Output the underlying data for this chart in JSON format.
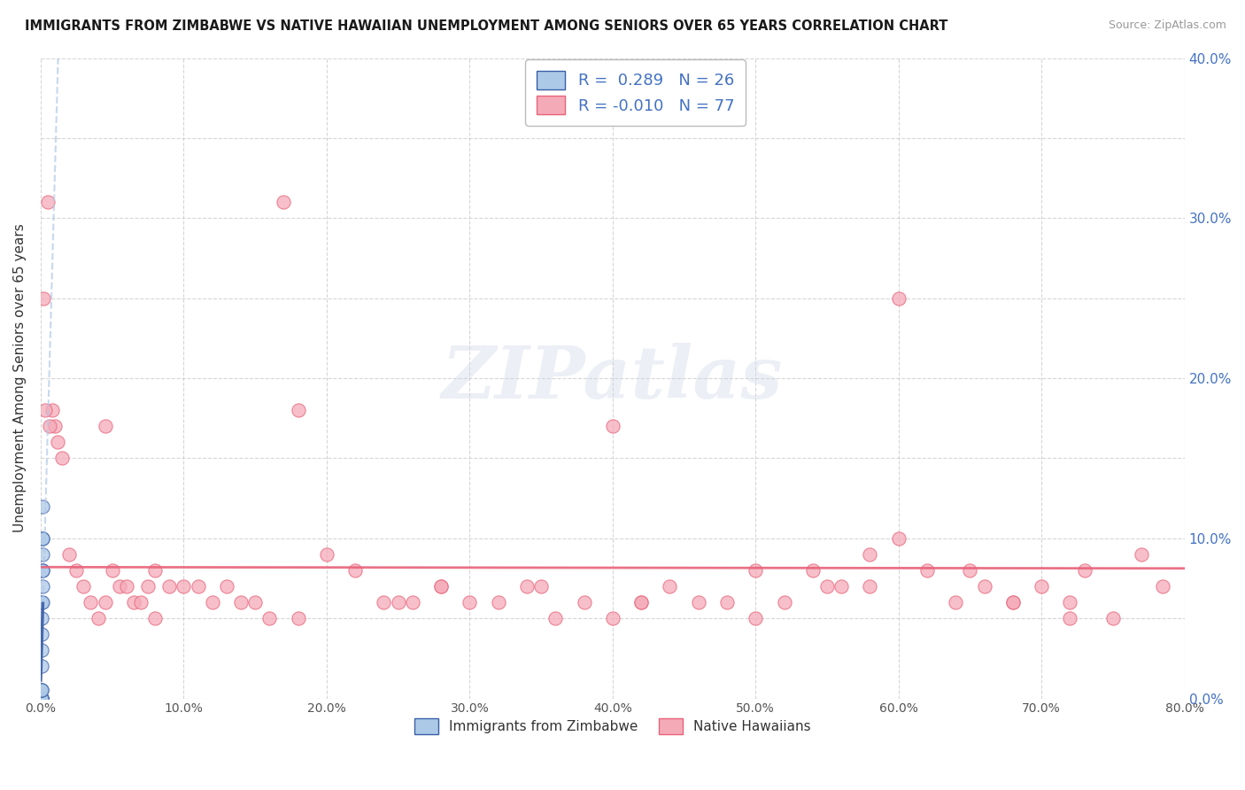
{
  "title": "IMMIGRANTS FROM ZIMBABWE VS NATIVE HAWAIIAN UNEMPLOYMENT AMONG SENIORS OVER 65 YEARS CORRELATION CHART",
  "source": "Source: ZipAtlas.com",
  "ylabel": "Unemployment Among Seniors over 65 years",
  "legend_bottom": [
    "Immigrants from Zimbabwe",
    "Native Hawaiians"
  ],
  "R1": 0.289,
  "N1": 26,
  "R2": -0.01,
  "N2": 77,
  "color1": "#adc9e8",
  "color2": "#f5aab8",
  "line_color1": "#3a5fa8",
  "line_color2": "#e8637a",
  "dash_color1": "#b0c8e8",
  "background_color": "#ffffff",
  "xlim": [
    0.0,
    0.8
  ],
  "ylim": [
    0.0,
    0.4
  ],
  "ytick_right_labels": [
    "0.0%",
    "10.0%",
    "20.0%",
    "30.0%",
    "40.0%"
  ],
  "ytick_right_vals": [
    0.0,
    0.1,
    0.2,
    0.3,
    0.4
  ],
  "xtick_vals": [
    0.0,
    0.1,
    0.2,
    0.3,
    0.4,
    0.5,
    0.6,
    0.7,
    0.8
  ],
  "xtick_labels": [
    "0.0%",
    "10.0%",
    "20.0%",
    "30.0%",
    "40.0%",
    "50.0%",
    "60.0%",
    "70.0%",
    "80.0%"
  ],
  "watermark": "ZIPatlas",
  "zim_x": [
    0.0002,
    0.0003,
    0.0003,
    0.0004,
    0.0004,
    0.0005,
    0.0005,
    0.0006,
    0.0006,
    0.0007,
    0.0007,
    0.0008,
    0.0008,
    0.0009,
    0.0009,
    0.001,
    0.001,
    0.0011,
    0.0012,
    0.0013,
    0.0014,
    0.0015,
    0.0003,
    0.0004,
    0.0006,
    0.001
  ],
  "zim_y": [
    0.0,
    0.0,
    0.0,
    0.0,
    0.0,
    0.0,
    0.0,
    0.0,
    0.0,
    0.0,
    0.02,
    0.03,
    0.04,
    0.05,
    0.06,
    0.07,
    0.08,
    0.06,
    0.1,
    0.08,
    0.09,
    0.12,
    0.005,
    0.005,
    0.005,
    0.1
  ],
  "haw_x": [
    0.005,
    0.002,
    0.008,
    0.01,
    0.012,
    0.015,
    0.02,
    0.025,
    0.03,
    0.035,
    0.04,
    0.045,
    0.05,
    0.055,
    0.06,
    0.065,
    0.07,
    0.075,
    0.08,
    0.09,
    0.1,
    0.11,
    0.12,
    0.13,
    0.14,
    0.15,
    0.16,
    0.17,
    0.18,
    0.2,
    0.22,
    0.24,
    0.26,
    0.28,
    0.3,
    0.32,
    0.34,
    0.36,
    0.38,
    0.4,
    0.42,
    0.44,
    0.46,
    0.48,
    0.5,
    0.52,
    0.54,
    0.56,
    0.58,
    0.6,
    0.62,
    0.64,
    0.66,
    0.68,
    0.7,
    0.72,
    0.73,
    0.75,
    0.77,
    0.785,
    0.003,
    0.006,
    0.045,
    0.08,
    0.4,
    0.6,
    0.5,
    0.35,
    0.25,
    0.18,
    0.55,
    0.65,
    0.68,
    0.72,
    0.58,
    0.42,
    0.28
  ],
  "haw_y": [
    0.31,
    0.25,
    0.18,
    0.17,
    0.16,
    0.15,
    0.09,
    0.08,
    0.07,
    0.06,
    0.05,
    0.06,
    0.08,
    0.07,
    0.07,
    0.06,
    0.06,
    0.07,
    0.05,
    0.07,
    0.07,
    0.07,
    0.06,
    0.07,
    0.06,
    0.06,
    0.05,
    0.31,
    0.18,
    0.09,
    0.08,
    0.06,
    0.06,
    0.07,
    0.06,
    0.06,
    0.07,
    0.05,
    0.06,
    0.05,
    0.06,
    0.07,
    0.06,
    0.06,
    0.05,
    0.06,
    0.08,
    0.07,
    0.09,
    0.1,
    0.08,
    0.06,
    0.07,
    0.06,
    0.07,
    0.06,
    0.08,
    0.05,
    0.09,
    0.07,
    0.18,
    0.17,
    0.17,
    0.08,
    0.17,
    0.25,
    0.08,
    0.07,
    0.06,
    0.05,
    0.07,
    0.08,
    0.06,
    0.05,
    0.07,
    0.06,
    0.07
  ]
}
